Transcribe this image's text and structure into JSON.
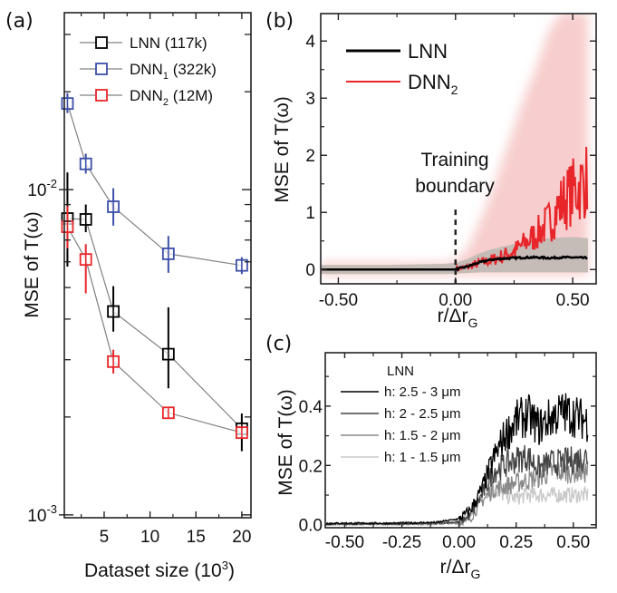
{
  "chart_data": [
    {
      "id": "a",
      "panel_label": "(a)",
      "type": "scatter",
      "yscale": "log",
      "xlabel": "Dataset size (10",
      "xlabel_sup": "3",
      "xlabel_end": ")",
      "ylabel": "MSE of T(ω)",
      "xlim": [
        0.66,
        21
      ],
      "ylim": [
        0.00098,
        0.035
      ],
      "xticks": [
        5,
        10,
        15,
        20
      ],
      "xtick_labels": [
        "5",
        "10",
        "15",
        "20"
      ],
      "yticks_major": [
        0.001,
        0.01
      ],
      "ytick_labels": [
        {
          "base": "10",
          "exp": "-3"
        },
        {
          "base": "10",
          "exp": "-2"
        }
      ],
      "yticks_minor": [
        0.002,
        0.003,
        0.004,
        0.005,
        0.006,
        0.007,
        0.008,
        0.009,
        0.02,
        0.03
      ],
      "legend": "top-right",
      "series": [
        {
          "name": "LNN (117k)",
          "name_main": "LNN (117k)",
          "sub": "",
          "name_tail": "",
          "color": "#000000",
          "x": [
            1,
            3,
            6,
            12,
            20
          ],
          "y": [
            0.00815,
            0.0081,
            0.00422,
            0.00312,
            0.00184
          ],
          "err_low": [
            0.0058,
            0.0074,
            0.00366,
            0.00245,
            0.00157
          ],
          "err_high": [
            0.0113,
            0.009,
            0.00505,
            0.00435,
            0.00205
          ]
        },
        {
          "name": "DNN1 (322k)",
          "name_main": "DNN",
          "sub": "1",
          "name_tail": " (322k)",
          "color": "#3b4fa8",
          "x": [
            1,
            3,
            6,
            12,
            20
          ],
          "y": [
            0.0184,
            0.012,
            0.00886,
            0.00635,
            0.00585
          ],
          "err_low": [
            0.0172,
            0.0112,
            0.00775,
            0.00555,
            0.0055
          ],
          "err_high": [
            0.0198,
            0.0129,
            0.0101,
            0.0072,
            0.0062
          ]
        },
        {
          "name": "DNN2 (12M)",
          "name_main": "DNN",
          "sub": "2",
          "name_tail": " (12M)",
          "color": "#e8262a",
          "x": [
            1,
            3,
            6,
            12,
            20
          ],
          "y": [
            0.00769,
            0.0061,
            0.00296,
            0.00206,
            0.00179
          ],
          "err_low": [
            0.0066,
            0.0048,
            0.00272,
            0.002,
            0.00172
          ],
          "err_high": [
            0.0089,
            0.0068,
            0.00322,
            0.00212,
            0.00186
          ]
        }
      ]
    },
    {
      "id": "b",
      "panel_label": "(b)",
      "type": "line",
      "xlabel": "r/Δr",
      "xlabel_sub": "G",
      "ylabel": "MSE of T(ω)",
      "xlim": [
        -0.575,
        0.6
      ],
      "ylim": [
        -0.25,
        4.48
      ],
      "xticks": [
        -0.5,
        0.0,
        0.5
      ],
      "xtick_labels": [
        "-0.50",
        "0.00",
        "0.50"
      ],
      "xticks_minor": [
        -0.25,
        0.25
      ],
      "yticks": [
        0,
        1,
        2,
        3,
        4
      ],
      "ytick_labels": [
        "0",
        "1",
        "2",
        "3",
        "4"
      ],
      "yticks_minor": [
        0.5,
        1.5,
        2.5,
        3.5
      ],
      "legend": "top-left",
      "annotation": {
        "line1": "Training",
        "line2": "boundary",
        "x": 0.0,
        "line_top": 1.05
      },
      "series": [
        {
          "name": "LNN",
          "name_main": "LNN",
          "sub": "",
          "color": "#000000",
          "band_color": "#c5bcb8",
          "x": [
            -0.57,
            -0.3,
            -0.05,
            0.0,
            0.05,
            0.1,
            0.15,
            0.2,
            0.25,
            0.3,
            0.35,
            0.4,
            0.45,
            0.5,
            0.56
          ],
          "y": [
            0.0,
            0.0,
            0.0,
            0.0,
            0.05,
            0.12,
            0.17,
            0.19,
            0.2,
            0.21,
            0.21,
            0.2,
            0.21,
            0.21,
            0.2
          ],
          "band_low": [
            -0.08,
            -0.08,
            -0.08,
            -0.07,
            -0.06,
            -0.05,
            -0.05,
            -0.05,
            -0.05,
            -0.05,
            -0.05,
            -0.05,
            -0.05,
            -0.05,
            -0.05
          ],
          "band_high": [
            0.08,
            0.08,
            0.1,
            0.12,
            0.18,
            0.28,
            0.35,
            0.4,
            0.45,
            0.5,
            0.52,
            0.55,
            0.56,
            0.57,
            0.55
          ]
        },
        {
          "name": "DNN2",
          "name_main": "DNN",
          "sub": "2",
          "color": "#e8262a",
          "band_color": "#f6c4c4",
          "x": [
            -0.57,
            -0.3,
            -0.05,
            0.0,
            0.05,
            0.1,
            0.15,
            0.2,
            0.25,
            0.3,
            0.35,
            0.4,
            0.45,
            0.5,
            0.56
          ],
          "y": [
            0.0,
            0.0,
            0.0,
            0.0,
            0.04,
            0.1,
            0.15,
            0.22,
            0.3,
            0.45,
            0.6,
            0.8,
            1.1,
            1.3,
            1.5
          ],
          "band_low": [
            -0.1,
            -0.1,
            -0.1,
            -0.1,
            -0.1,
            -0.1,
            -0.1,
            -0.1,
            -0.1,
            -0.1,
            -0.1,
            -0.1,
            -0.1,
            -0.1,
            -0.1
          ],
          "band_high": [
            0.12,
            0.12,
            0.12,
            0.15,
            0.35,
            0.8,
            1.3,
            1.9,
            2.5,
            3.1,
            3.6,
            4.2,
            4.5,
            4.5,
            4.5
          ]
        }
      ]
    },
    {
      "id": "c",
      "panel_label": "(c)",
      "type": "line",
      "xlabel": "r/Δr",
      "xlabel_sub": "G",
      "ylabel": "MSE of T(ω)",
      "xlim": [
        -0.585,
        0.6
      ],
      "ylim": [
        -0.01,
        0.58
      ],
      "xticks": [
        -0.5,
        -0.25,
        0.0,
        0.25,
        0.5
      ],
      "xtick_labels": [
        "-0.50",
        "-0.25",
        "0.00",
        "0.25",
        "0.50"
      ],
      "yticks": [
        0.0,
        0.2,
        0.4
      ],
      "ytick_labels": [
        "0.0",
        "0.2",
        "0.4"
      ],
      "yticks_minor": [
        0.1,
        0.3,
        0.5
      ],
      "legend": "top-left",
      "legend_title": "LNN",
      "series": [
        {
          "name": "h: 2.5 - 3 μm",
          "color": "#000000",
          "x": [
            -0.58,
            -0.3,
            -0.1,
            0.0,
            0.05,
            0.1,
            0.15,
            0.2,
            0.25,
            0.3,
            0.35,
            0.4,
            0.45,
            0.5,
            0.56
          ],
          "y": [
            0.005,
            0.005,
            0.008,
            0.02,
            0.05,
            0.12,
            0.22,
            0.3,
            0.35,
            0.37,
            0.33,
            0.36,
            0.38,
            0.37,
            0.35
          ]
        },
        {
          "name": "h: 2 - 2.5 μm",
          "color": "#444444",
          "x": [
            -0.58,
            -0.3,
            -0.1,
            0.0,
            0.05,
            0.1,
            0.15,
            0.2,
            0.25,
            0.3,
            0.35,
            0.4,
            0.45,
            0.5,
            0.56
          ],
          "y": [
            0.003,
            0.003,
            0.005,
            0.01,
            0.03,
            0.1,
            0.18,
            0.2,
            0.22,
            0.23,
            0.19,
            0.21,
            0.21,
            0.22,
            0.23
          ]
        },
        {
          "name": "h: 1.5 - 2 μm",
          "color": "#8a8a8a",
          "x": [
            -0.58,
            -0.3,
            -0.1,
            0.0,
            0.05,
            0.1,
            0.15,
            0.2,
            0.25,
            0.3,
            0.35,
            0.4,
            0.45,
            0.5,
            0.56
          ],
          "y": [
            0.002,
            0.002,
            0.003,
            0.006,
            0.02,
            0.08,
            0.12,
            0.13,
            0.14,
            0.15,
            0.16,
            0.18,
            0.18,
            0.18,
            0.18
          ]
        },
        {
          "name": "h: 1 - 1.5 μm",
          "color": "#c8c8c8",
          "x": [
            -0.58,
            -0.3,
            -0.1,
            0.0,
            0.05,
            0.1,
            0.15,
            0.2,
            0.25,
            0.3,
            0.35,
            0.4,
            0.45,
            0.5,
            0.56
          ],
          "y": [
            0.002,
            0.002,
            0.003,
            0.005,
            0.03,
            0.11,
            0.12,
            0.1,
            0.09,
            0.1,
            0.1,
            0.1,
            0.1,
            0.1,
            0.1
          ]
        }
      ]
    }
  ]
}
